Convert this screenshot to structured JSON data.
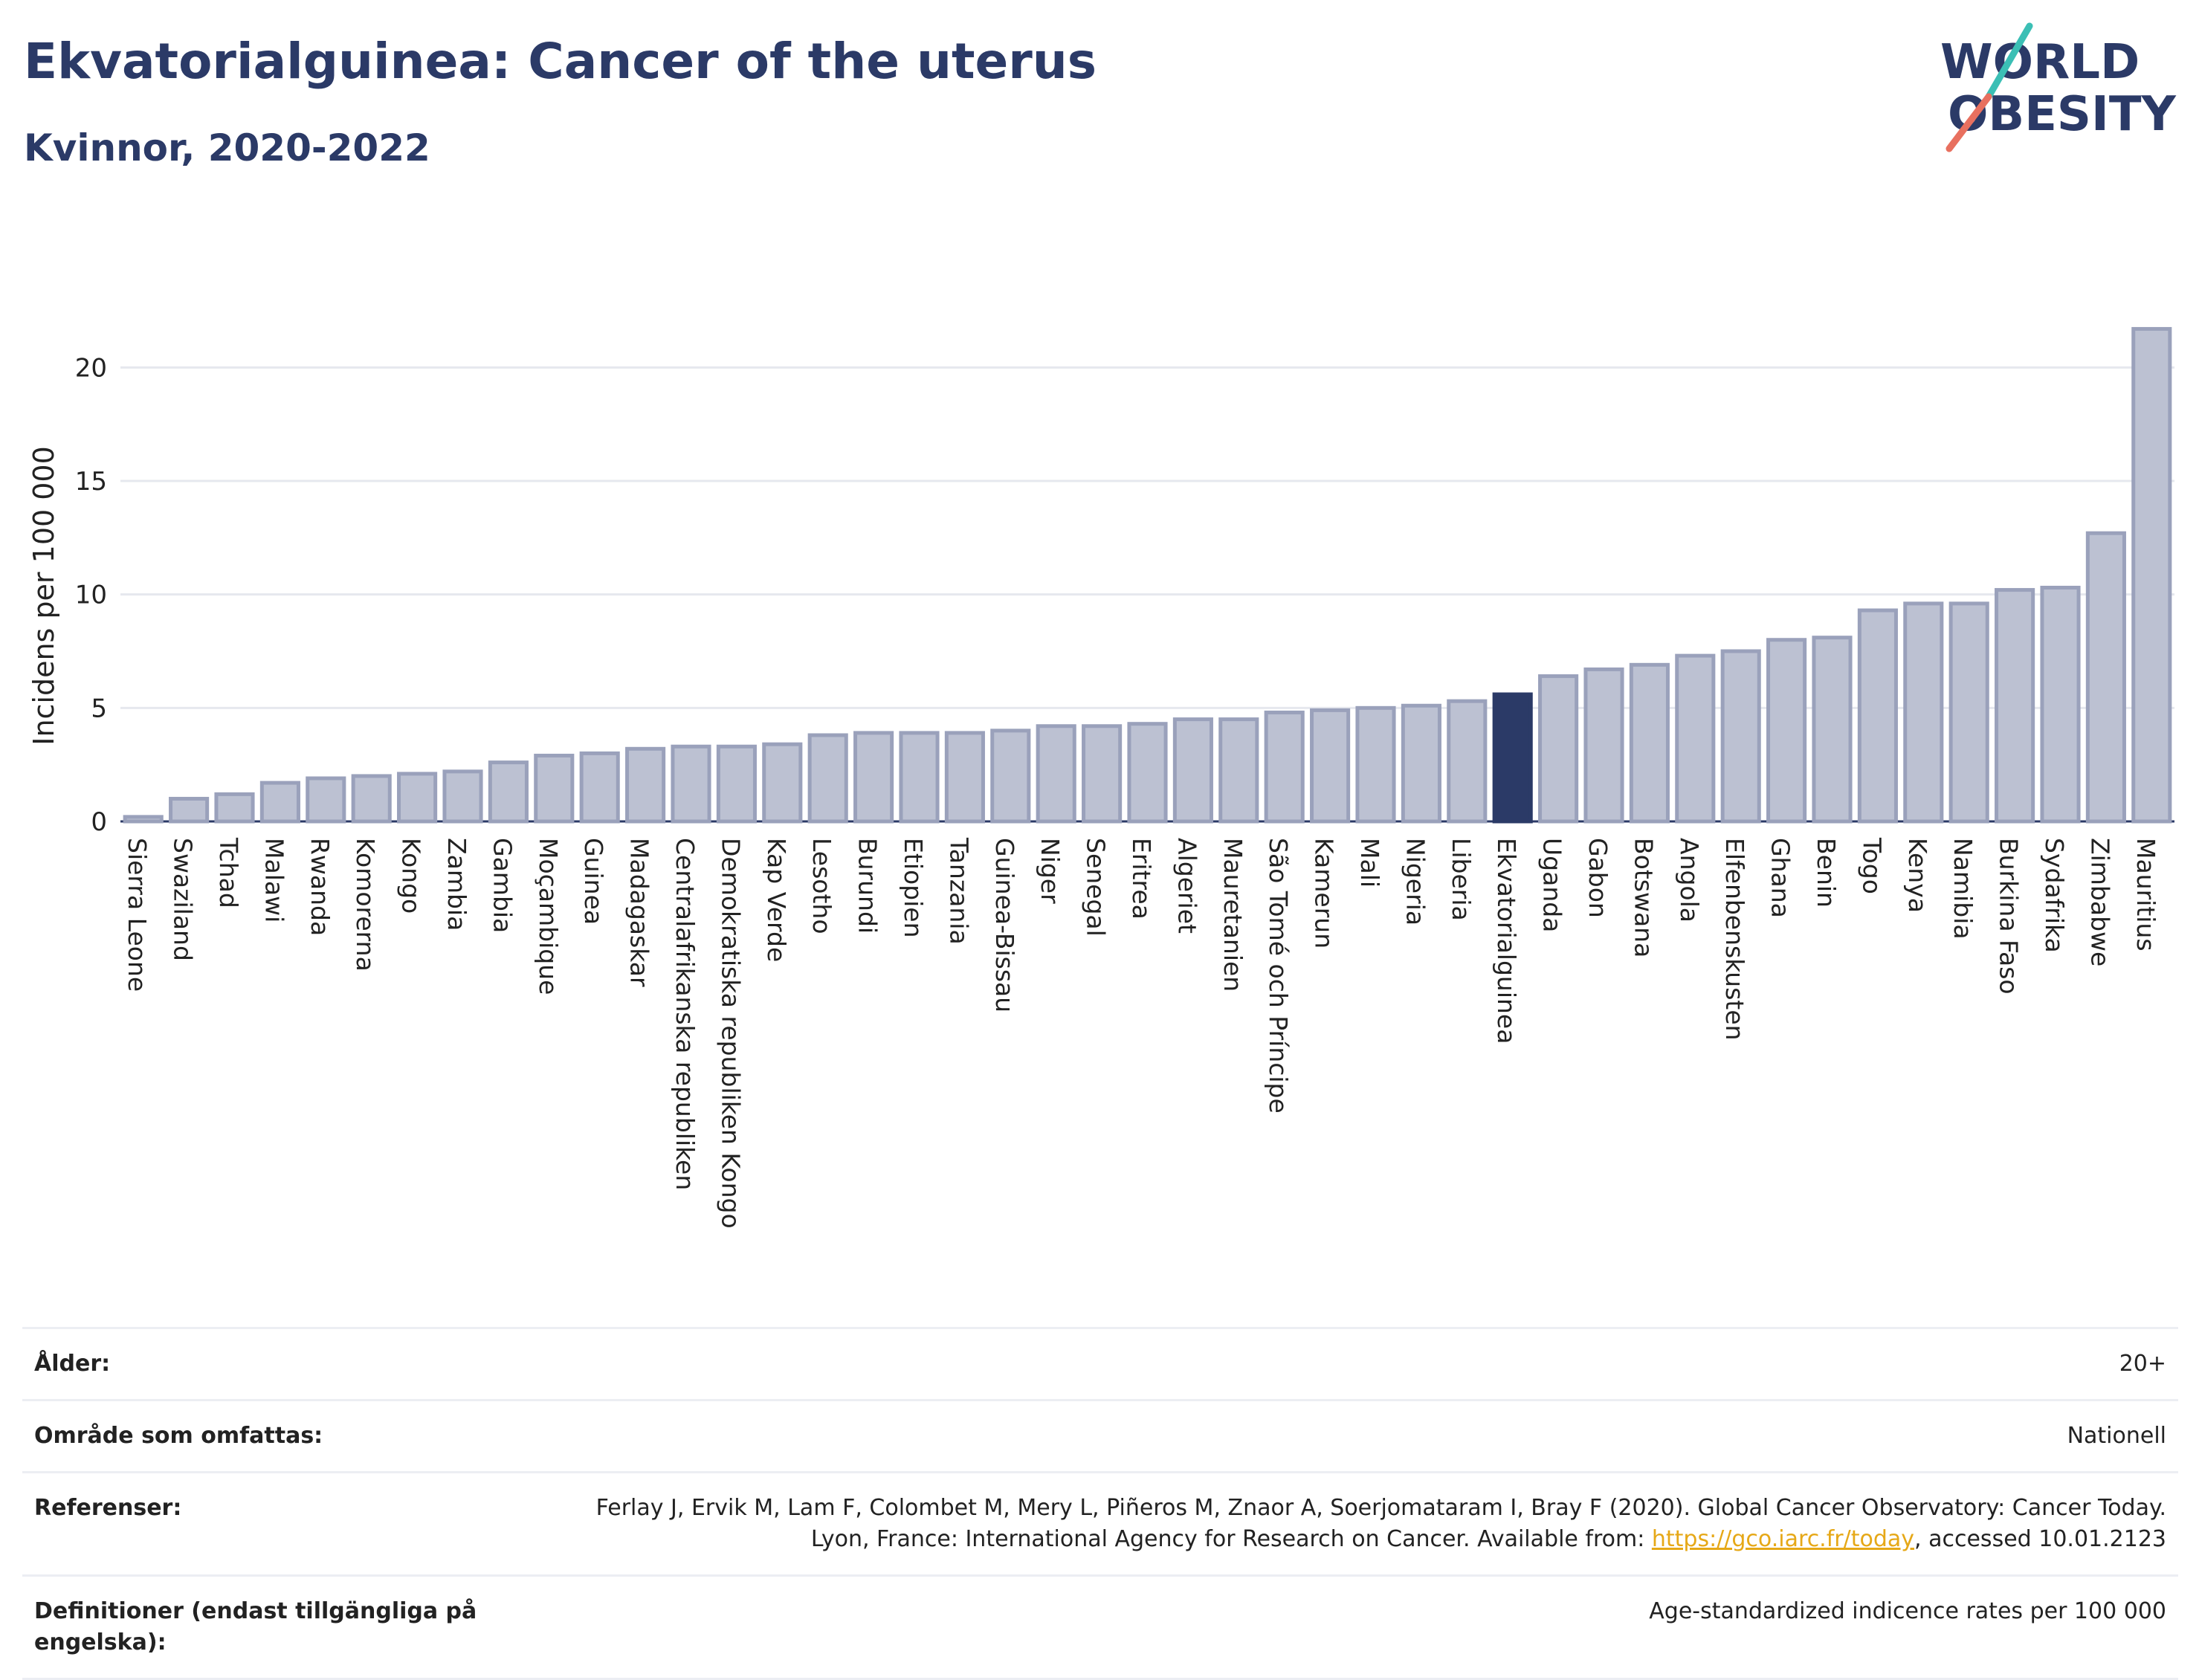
{
  "header": {
    "title": "Ekvatorialguinea: Cancer of the uterus",
    "subtitle": "Kvinnor, 2020-2022"
  },
  "logo": {
    "line1": "WORLD",
    "line2": "OBESITY",
    "colors": {
      "text": "#2b3a67",
      "slash_teal": "#3bbfb5",
      "slash_red": "#e8705f"
    }
  },
  "chart_data": {
    "type": "bar",
    "ylabel": "Incidens per 100 000",
    "ylim": [
      0,
      22.5
    ],
    "yticks": [
      0,
      5,
      10,
      15,
      20
    ],
    "grid": true,
    "highlight": "Ekvatorialguinea",
    "colors": {
      "bar": "#bcc1d2",
      "bar_border": "#9aa1bb",
      "highlight": "#2b3a67",
      "axis": "#2b3a67",
      "grid": "#e6e8ee"
    },
    "categories": [
      "Sierra Leone",
      "Swaziland",
      "Tchad",
      "Malawi",
      "Rwanda",
      "Komorerna",
      "Kongo",
      "Zambia",
      "Gambia",
      "Moçambique",
      "Guinea",
      "Madagaskar",
      "Centralafrikanska republiken",
      "Demokratiska republiken Kongo",
      "Kap Verde",
      "Lesotho",
      "Burundi",
      "Etiopien",
      "Tanzania",
      "Guinea-Bissau",
      "Niger",
      "Senegal",
      "Eritrea",
      "Algeriet",
      "Mauretanien",
      "São Tomé och Príncipe",
      "Kamerun",
      "Mali",
      "Nigeria",
      "Liberia",
      "Ekvatorialguinea",
      "Uganda",
      "Gabon",
      "Botswana",
      "Angola",
      "Elfenbenskusten",
      "Ghana",
      "Benin",
      "Togo",
      "Kenya",
      "Namibia",
      "Burkina Faso",
      "Sydafrika",
      "Zimbabwe",
      "Mauritius"
    ],
    "values": [
      0.2,
      1.0,
      1.2,
      1.7,
      1.9,
      2.0,
      2.1,
      2.2,
      2.6,
      2.9,
      3.0,
      3.2,
      3.3,
      3.3,
      3.4,
      3.8,
      3.9,
      3.9,
      3.9,
      4.0,
      4.2,
      4.2,
      4.3,
      4.5,
      4.5,
      4.8,
      4.9,
      5.0,
      5.1,
      5.3,
      5.6,
      6.4,
      6.7,
      6.9,
      7.3,
      7.5,
      8.0,
      8.1,
      9.3,
      9.6,
      9.6,
      10.2,
      10.3,
      12.7,
      21.7
    ]
  },
  "info": {
    "age_label": "Ålder:",
    "age_value": "20+",
    "area_label": "Område som omfattas:",
    "area_value": "Nationell",
    "refs_label": "Referenser:",
    "refs_text_1": "Ferlay J, Ervik M, Lam F, Colombet M, Mery L, Piñeros M, Znaor A, Soerjomataram I, Bray F (2020). Global Cancer Observatory: Cancer Today. Lyon, France: International Agency for Research on Cancer. Available from: ",
    "refs_link": "https://gco.iarc.fr/today",
    "refs_text_2": ", accessed 10.01.2123",
    "defs_label": "Definitioner (endast tillgängliga på engelska):",
    "defs_value": "Age-standardized indicence rates per 100 000"
  }
}
